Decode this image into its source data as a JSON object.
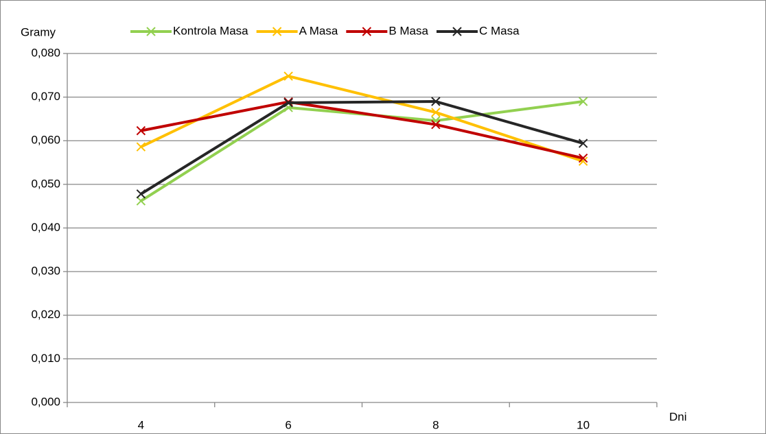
{
  "chart_data": {
    "type": "line",
    "y_label": "Gramy",
    "x_label": "Dni",
    "categories": [
      "4",
      "6",
      "8",
      "10"
    ],
    "series": [
      {
        "name": "Kontrola Masa",
        "color": "#92d050",
        "values": [
          0.0462,
          0.0676,
          0.0646,
          0.069
        ]
      },
      {
        "name": "A Masa",
        "color": "#ffc000",
        "values": [
          0.0586,
          0.0748,
          0.0665,
          0.0553
        ]
      },
      {
        "name": "B Masa",
        "color": "#c00000",
        "values": [
          0.0623,
          0.0689,
          0.0637,
          0.056
        ]
      },
      {
        "name": "C Masa",
        "color": "#262626",
        "values": [
          0.0478,
          0.0687,
          0.069,
          0.0594
        ]
      }
    ],
    "ylim": [
      0,
      0.08
    ],
    "yticks": [
      {
        "value": 0,
        "label": "0,000"
      },
      {
        "value": 0.01,
        "label": "0,010"
      },
      {
        "value": 0.02,
        "label": "0,020"
      },
      {
        "value": 0.03,
        "label": "0,030"
      },
      {
        "value": 0.04,
        "label": "0,040"
      },
      {
        "value": 0.05,
        "label": "0,050"
      },
      {
        "value": 0.06,
        "label": "0,060"
      },
      {
        "value": 0.07,
        "label": "0,070"
      },
      {
        "value": 0.08,
        "label": "0,080"
      }
    ],
    "grid": true,
    "legend": "top"
  }
}
